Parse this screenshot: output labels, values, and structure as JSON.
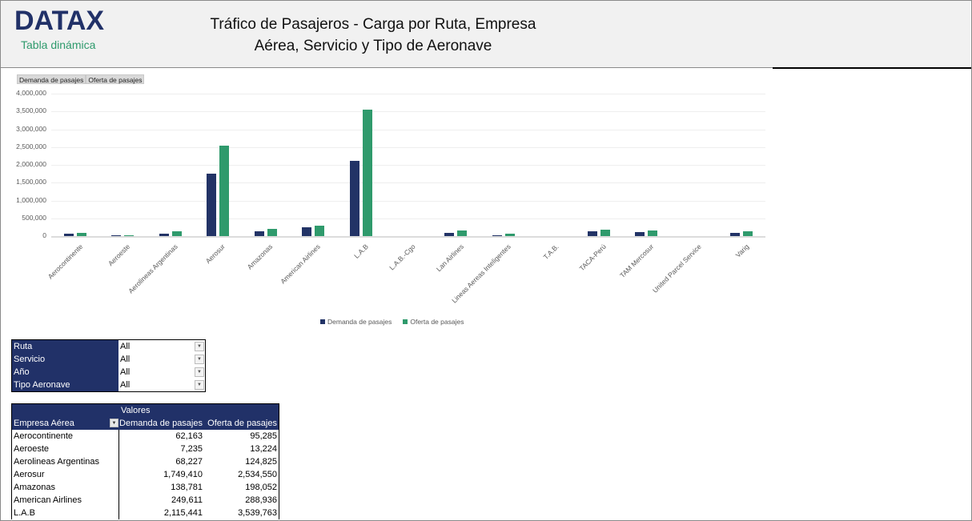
{
  "header": {
    "logo": "DATAX",
    "subtitle": "Tabla dinámica",
    "title_line1": "Tráfico de Pasajeros - Carga por Ruta, Empresa",
    "title_line2": "Aérea, Servicio y Tipo de Aeronave"
  },
  "chart_field_buttons": [
    "Demanda de pasajes",
    "Oferta de pasajes"
  ],
  "chart_data": {
    "type": "bar",
    "title": "",
    "xlabel": "",
    "ylabel": "",
    "ylim": [
      0,
      4000000
    ],
    "yticks": [
      "4,000,000",
      "3,500,000",
      "3,000,000",
      "2,500,000",
      "2,000,000",
      "1,500,000",
      "1,000,000",
      "500,000",
      "0"
    ],
    "grid": true,
    "legend_position": "bottom",
    "categories": [
      "Aerocontinente",
      "Aeroeste",
      "Aerolineas Argentinas",
      "Aerosur",
      "Amazonas",
      "American Airlines",
      "L.A.B",
      "L.A.B.-Cgo",
      "Lan Airlines",
      "Lineas Aereas Inteligentes",
      "T.A.B.",
      "TACA-Perú",
      "TAM Mercosur",
      "United Parcel Service",
      "Varig"
    ],
    "series": [
      {
        "name": "Demanda de pasajes",
        "color": "#223366",
        "values": [
          62163,
          7235,
          68227,
          1749410,
          138781,
          249611,
          2115441,
          0,
          80000,
          30000,
          0,
          130000,
          110000,
          0,
          95000
        ]
      },
      {
        "name": "Oferta de pasajes",
        "color": "#2f9a6c",
        "values": [
          95285,
          13224,
          124825,
          2534550,
          198052,
          288936,
          3539763,
          0,
          150000,
          70000,
          0,
          175000,
          150000,
          0,
          130000
        ]
      }
    ]
  },
  "legend": {
    "demand": "Demanda de pasajes",
    "offer": "Oferta de pasajes"
  },
  "filters": [
    {
      "label": "Ruta",
      "value": "All"
    },
    {
      "label": "Servicio",
      "value": "All"
    },
    {
      "label": "Año",
      "value": "All"
    },
    {
      "label": "Tipo Aeronave",
      "value": "All"
    }
  ],
  "pivot": {
    "values_header": "Valores",
    "row_header": "Empresa Aérea",
    "col1": "Demanda de pasajes",
    "col2": "Oferta de pasajes",
    "rows": [
      {
        "name": "Aerocontinente",
        "demand": "62,163",
        "offer": "95,285"
      },
      {
        "name": "Aeroeste",
        "demand": "7,235",
        "offer": "13,224"
      },
      {
        "name": "Aerolineas Argentinas",
        "demand": "68,227",
        "offer": "124,825"
      },
      {
        "name": "Aerosur",
        "demand": "1,749,410",
        "offer": "2,534,550"
      },
      {
        "name": "Amazonas",
        "demand": "138,781",
        "offer": "198,052"
      },
      {
        "name": "American Airlines",
        "demand": "249,611",
        "offer": "288,936"
      },
      {
        "name": "L.A.B",
        "demand": "2,115,441",
        "offer": "3,539,763"
      }
    ]
  }
}
